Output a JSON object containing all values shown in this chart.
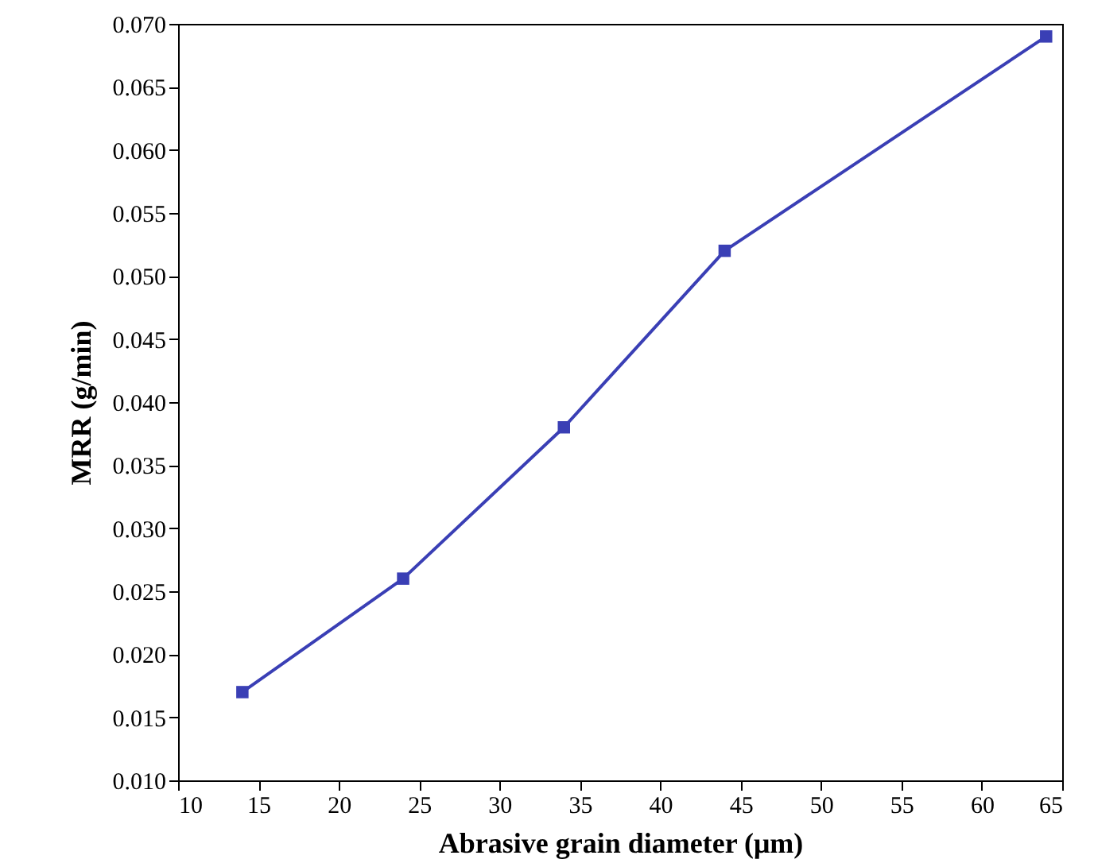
{
  "chart_data": {
    "type": "line",
    "xlabel": "Abrasive grain diameter (μm)",
    "ylabel": "MRR (g/min)",
    "x": [
      14,
      24,
      34,
      44,
      64
    ],
    "series": [
      {
        "color": "#3a3fb5",
        "values": [
          0.017,
          0.026,
          0.038,
          0.052,
          0.069
        ]
      }
    ],
    "xlim": [
      10,
      65
    ],
    "xticks": [
      10,
      15,
      20,
      25,
      30,
      35,
      40,
      45,
      50,
      55,
      60,
      65
    ],
    "ylim": [
      0.01,
      0.07
    ],
    "yticks": [
      {
        "value": 0.01,
        "label": "0.010"
      },
      {
        "value": 0.015,
        "label": "0.015"
      },
      {
        "value": 0.02,
        "label": "0.020"
      },
      {
        "value": 0.025,
        "label": "0.025"
      },
      {
        "value": 0.03,
        "label": "0.030"
      },
      {
        "value": 0.035,
        "label": "0.035"
      },
      {
        "value": 0.04,
        "label": "0.040"
      },
      {
        "value": 0.045,
        "label": "0.045"
      },
      {
        "value": 0.05,
        "label": "0.050"
      },
      {
        "value": 0.055,
        "label": "0.055"
      },
      {
        "value": 0.06,
        "label": "0.060"
      },
      {
        "value": 0.065,
        "label": "0.065"
      },
      {
        "value": 0.07,
        "label": "0.070"
      }
    ],
    "marker": "square",
    "line_style": "solid",
    "grid": false
  }
}
